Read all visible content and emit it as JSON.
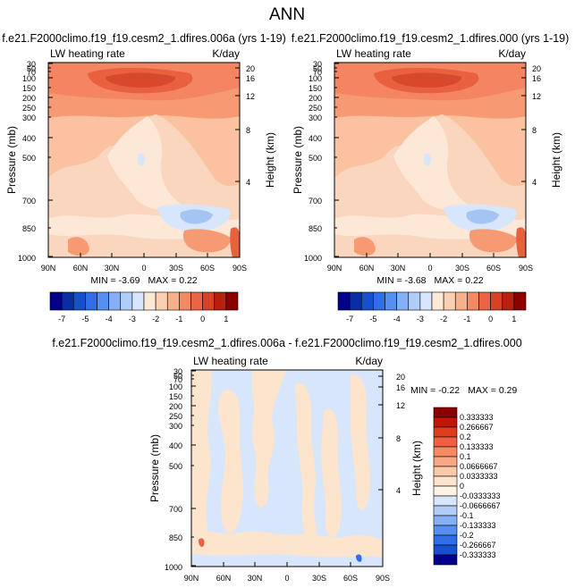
{
  "chart_data": {
    "title": "ANN",
    "panels": [
      {
        "type": "heatmap",
        "case_title": "f.e21.F2000climo.f19_f19.cesm2_1.dfires.006a (yrs 1-19)",
        "left_label": "LW heating rate",
        "right_label": "K/day",
        "ylabel": "Pressure (mb)",
        "ylabel_right": "Height (km)",
        "y_ticks": [
          "30",
          "50",
          "70",
          "100",
          "150",
          "200",
          "250",
          "300",
          "400",
          "500",
          "700",
          "850",
          "1000"
        ],
        "height_ticks": [
          "20",
          "16",
          "12",
          "8",
          "4"
        ],
        "x_ticks": [
          "90N",
          "60N",
          "30N",
          "0",
          "30S",
          "60S",
          "90S"
        ],
        "min_label": "MIN =",
        "min": "-3.69",
        "max_label": "MAX =",
        "max": "0.22"
      },
      {
        "type": "heatmap",
        "case_title": "f.e21.F2000climo.f19_f19.cesm2_1.dfires.000 (yrs 1-19)",
        "left_label": "LW heating rate",
        "right_label": "K/day",
        "ylabel": "Pressure (mb)",
        "ylabel_right": "Height (km)",
        "y_ticks": [
          "30",
          "50",
          "70",
          "100",
          "150",
          "200",
          "250",
          "300",
          "400",
          "500",
          "700",
          "850",
          "1000"
        ],
        "height_ticks": [
          "20",
          "16",
          "12",
          "8",
          "4"
        ],
        "x_ticks": [
          "90N",
          "60N",
          "30N",
          "0",
          "30S",
          "60S",
          "90S"
        ],
        "min_label": "MIN =",
        "min": "-3.68",
        "max_label": "MAX =",
        "max": "0.22"
      },
      {
        "type": "heatmap",
        "case_title": "f.e21.F2000climo.f19_f19.cesm2_1.dfires.006a - f.e21.F2000climo.f19_f19.cesm2_1.dfires.000",
        "left_label": "LW heating rate",
        "right_label": "K/day",
        "ylabel": "Pressure (mb)",
        "ylabel_right": "Height (km)",
        "y_ticks": [
          "30",
          "50",
          "70",
          "100",
          "150",
          "200",
          "250",
          "300",
          "400",
          "500",
          "700",
          "850",
          "1000"
        ],
        "height_ticks": [
          "20",
          "16",
          "12",
          "8",
          "4"
        ],
        "x_ticks": [
          "90N",
          "60N",
          "30N",
          "0",
          "30S",
          "60S",
          "90S"
        ],
        "min_label": "MIN =",
        "min": "-0.22",
        "max_label": "MAX =",
        "max": "0.29"
      }
    ],
    "colorbar_main": {
      "tick_labels": [
        "-7",
        "-5",
        "-4",
        "-3",
        "-2",
        "-1",
        "0",
        "1"
      ],
      "colors": [
        "#00008c",
        "#0a2ca5",
        "#1650cc",
        "#2f6ee6",
        "#5590f0",
        "#86b0f5",
        "#b0cdf8",
        "#d8e6fb",
        "#fde9d6",
        "#fbd0b0",
        "#f8b088",
        "#f48a64",
        "#ec6444",
        "#d84028",
        "#b82010",
        "#8c0000"
      ]
    },
    "colorbar_diff": {
      "labels": [
        "0.333333",
        "0.266667",
        "0.2",
        "0.133333",
        "0.1",
        "0.0666667",
        "0.0333333",
        "0",
        "-0.0333333",
        "-0.0666667",
        "-0.1",
        "-0.133333",
        "-0.2",
        "-0.266667",
        "-0.333333"
      ],
      "colors": [
        "#8c0000",
        "#c01808",
        "#e03c1c",
        "#f06040",
        "#f58a64",
        "#f8a884",
        "#fbc8a8",
        "#fde4cc",
        "#fcf2e6",
        "#d8e6fb",
        "#b0cdf8",
        "#86b0f5",
        "#5590f0",
        "#2f6ee6",
        "#1650cc",
        "#00008c"
      ]
    }
  }
}
